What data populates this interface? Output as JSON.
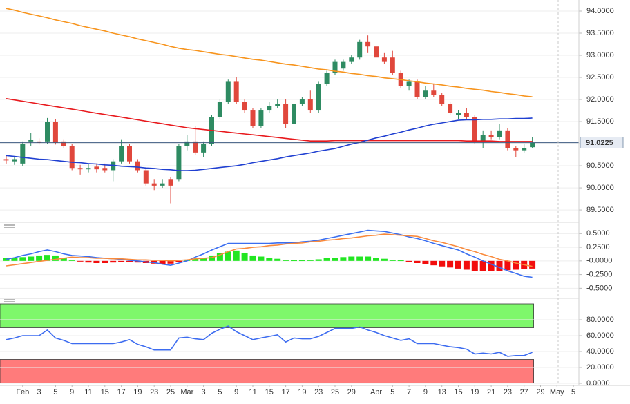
{
  "chart_data": [
    {
      "type": "candlestick",
      "categories": [
        null,
        null,
        "Feb",
        null,
        "3",
        null,
        "5",
        null,
        "9",
        null,
        "11",
        null,
        "15",
        null,
        "17",
        null,
        "19",
        null,
        "23",
        null,
        "25",
        null,
        "Mar",
        null,
        "3",
        null,
        "5",
        null,
        "9",
        null,
        "11",
        null,
        "15",
        null,
        "17",
        null,
        "19",
        null,
        "23",
        null,
        "25",
        null,
        "29",
        null,
        null,
        "Apr",
        null,
        "5",
        null,
        "7",
        null,
        "9",
        null,
        "13",
        null,
        "15",
        null,
        "19",
        null,
        "21",
        null,
        "23",
        null,
        "27",
        null,
        "29",
        null,
        "May",
        null,
        "5"
      ],
      "open": [
        90.65,
        90.6,
        90.55,
        91.05,
        91.05,
        91.05,
        91.5,
        91.05,
        90.95,
        90.45,
        90.42,
        90.48,
        90.45,
        90.4,
        90.6,
        90.95,
        90.6,
        90.4,
        90.1,
        90.05,
        90.2,
        90.2,
        90.95,
        91.05,
        90.8,
        91.0,
        91.6,
        91.95,
        92.4,
        91.95,
        91.75,
        91.4,
        91.75,
        91.85,
        91.9,
        91.45,
        91.9,
        92.0,
        91.75,
        92.35,
        92.6,
        92.7,
        92.85,
        92.95,
        93.3,
        93.2,
        92.95,
        92.95,
        92.6,
        92.3,
        92.4,
        92.05,
        92.2,
        92.1,
        91.9,
        91.65,
        91.7,
        91.6,
        91.05,
        91.2,
        91.15,
        91.3,
        90.9,
        90.85,
        90.92,
        null,
        null,
        null,
        null,
        null
      ],
      "high": [
        90.75,
        90.72,
        91.05,
        91.25,
        91.12,
        91.58,
        91.55,
        91.1,
        91.0,
        90.52,
        90.55,
        90.55,
        90.55,
        90.65,
        91.1,
        91.0,
        90.65,
        90.45,
        90.2,
        90.2,
        90.25,
        91.0,
        91.2,
        91.4,
        91.05,
        91.65,
        92.0,
        92.45,
        92.5,
        92.0,
        91.8,
        91.8,
        91.95,
        92.0,
        92.0,
        91.95,
        92.05,
        92.2,
        92.4,
        92.65,
        92.9,
        92.9,
        93.0,
        93.35,
        93.45,
        93.3,
        93.05,
        93.1,
        92.65,
        92.45,
        92.45,
        92.3,
        92.35,
        92.15,
        91.95,
        91.75,
        91.8,
        91.65,
        91.3,
        91.3,
        91.45,
        91.35,
        90.95,
        91.0,
        91.15,
        null,
        null,
        null,
        null,
        null
      ],
      "low": [
        90.55,
        90.52,
        90.5,
        90.95,
        90.98,
        91.0,
        90.98,
        90.9,
        90.4,
        90.3,
        90.35,
        90.35,
        90.35,
        90.15,
        90.55,
        90.55,
        90.35,
        90.05,
        89.95,
        90.0,
        89.65,
        90.15,
        90.85,
        90.75,
        90.7,
        90.95,
        91.55,
        91.9,
        91.9,
        91.7,
        91.35,
        91.35,
        91.7,
        91.8,
        91.35,
        91.4,
        91.85,
        91.7,
        91.7,
        92.3,
        92.55,
        92.65,
        92.8,
        92.9,
        93.05,
        92.9,
        92.8,
        92.55,
        92.25,
        92.2,
        92.0,
        92.0,
        92.05,
        91.85,
        91.65,
        91.55,
        91.55,
        91.0,
        90.9,
        91.1,
        91.1,
        90.85,
        90.7,
        90.8,
        90.9,
        null,
        null,
        null,
        null,
        null
      ],
      "close": [
        90.62,
        90.65,
        91.0,
        91.08,
        91.02,
        91.5,
        91.02,
        90.95,
        90.45,
        90.42,
        90.45,
        90.42,
        90.4,
        90.6,
        90.95,
        90.6,
        90.4,
        90.1,
        90.05,
        90.1,
        90.05,
        90.95,
        91.05,
        90.8,
        91.0,
        91.6,
        91.95,
        92.4,
        91.95,
        91.75,
        91.4,
        91.75,
        91.85,
        91.9,
        91.45,
        91.9,
        92.0,
        91.75,
        92.35,
        92.6,
        92.85,
        92.85,
        92.95,
        93.3,
        93.2,
        92.95,
        92.85,
        92.6,
        92.3,
        92.4,
        92.05,
        92.2,
        92.1,
        91.9,
        91.7,
        91.7,
        91.6,
        91.05,
        91.2,
        91.15,
        91.3,
        90.9,
        90.85,
        90.9,
        91.02,
        null,
        null,
        null,
        null,
        null
      ],
      "up_color": "#2e8b62",
      "down_color": "#e0473c",
      "series": [
        {
          "color": "#f7941d",
          "values": [
            94.06,
            94.02,
            93.97,
            93.93,
            93.89,
            93.85,
            93.8,
            93.76,
            93.72,
            93.67,
            93.63,
            93.59,
            93.55,
            93.5,
            93.46,
            93.42,
            93.37,
            93.33,
            93.29,
            93.25,
            93.2,
            93.16,
            93.13,
            93.11,
            93.08,
            93.05,
            93.02,
            93.0,
            92.97,
            92.94,
            92.91,
            92.89,
            92.86,
            92.83,
            92.8,
            92.78,
            92.75,
            92.72,
            92.69,
            92.67,
            92.64,
            92.62,
            92.59,
            92.57,
            92.54,
            92.52,
            92.49,
            92.47,
            92.45,
            92.42,
            92.4,
            92.37,
            92.35,
            92.33,
            92.3,
            92.28,
            92.25,
            92.23,
            92.21,
            92.18,
            92.16,
            92.13,
            92.11,
            92.08,
            92.06,
            null,
            null,
            null,
            null,
            null
          ]
        },
        {
          "color": "#e8191d",
          "values": [
            92.02,
            91.99,
            91.96,
            91.93,
            91.9,
            91.87,
            91.84,
            91.81,
            91.78,
            91.75,
            91.72,
            91.69,
            91.66,
            91.63,
            91.6,
            91.57,
            91.54,
            91.51,
            91.48,
            91.45,
            91.42,
            91.39,
            91.36,
            91.34,
            91.32,
            91.3,
            91.28,
            91.26,
            91.24,
            91.22,
            91.2,
            91.18,
            91.16,
            91.14,
            91.12,
            91.1,
            91.08,
            91.06,
            91.06,
            91.06,
            91.07,
            91.07,
            91.07,
            91.07,
            91.07,
            91.07,
            91.07,
            91.07,
            91.07,
            91.07,
            91.07,
            91.07,
            91.07,
            91.07,
            91.07,
            91.07,
            91.06,
            91.06,
            91.06,
            91.06,
            91.05,
            91.05,
            91.05,
            91.05,
            91.05,
            null,
            null,
            null,
            null,
            null
          ]
        },
        {
          "color": "#1f3fd1",
          "values": [
            90.73,
            90.71,
            90.69,
            90.67,
            90.65,
            90.64,
            90.62,
            90.6,
            90.58,
            90.57,
            90.55,
            90.54,
            90.52,
            90.51,
            90.49,
            90.48,
            90.47,
            90.45,
            90.44,
            90.42,
            90.41,
            90.39,
            90.39,
            90.4,
            90.42,
            90.44,
            90.46,
            90.48,
            90.5,
            90.53,
            90.57,
            90.6,
            90.63,
            90.66,
            90.7,
            90.73,
            90.76,
            90.79,
            90.83,
            90.86,
            90.89,
            90.94,
            90.99,
            91.03,
            91.08,
            91.13,
            91.17,
            91.22,
            91.26,
            91.31,
            91.35,
            91.4,
            91.44,
            91.47,
            91.5,
            91.53,
            91.54,
            91.54,
            91.55,
            91.55,
            91.56,
            91.56,
            91.57,
            91.57,
            91.58,
            null,
            null,
            null,
            null,
            null
          ]
        }
      ],
      "last_price": 91.0225,
      "last_price_color": "#3d5a80",
      "ylim": [
        89.22,
        94.25
      ],
      "yticks": [
        {
          "value": 89.5,
          "label": "89.5000"
        },
        {
          "value": 90,
          "label": "90.0000"
        },
        {
          "value": 90.5,
          "label": "90.5000"
        },
        {
          "value": 91,
          "label": "91.0000"
        },
        {
          "value": 91.5,
          "label": "91.5000"
        },
        {
          "value": 92,
          "label": "92.0000"
        },
        {
          "value": 92.5,
          "label": "92.5000"
        },
        {
          "value": 93,
          "label": "93.0000"
        },
        {
          "value": 93.5,
          "label": "93.5000"
        },
        {
          "value": 94,
          "label": "94.0000"
        }
      ],
      "grid": true
    },
    {
      "type": "bar",
      "values": [
        0.06,
        0.06,
        0.07,
        0.08,
        0.1,
        0.11,
        0.1,
        0.06,
        0.02,
        -0.01,
        -0.03,
        -0.04,
        -0.04,
        -0.03,
        -0.02,
        -0.02,
        -0.03,
        -0.04,
        -0.05,
        -0.06,
        -0.05,
        -0.02,
        0.02,
        0.04,
        0.06,
        0.1,
        0.14,
        0.17,
        0.19,
        0.15,
        0.1,
        0.08,
        0.06,
        0.04,
        0.02,
        0.01,
        0.01,
        0.02,
        0.03,
        0.05,
        0.06,
        0.07,
        0.08,
        0.08,
        0.08,
        0.06,
        0.04,
        0.02,
        0.01,
        -0.02,
        -0.04,
        -0.06,
        -0.08,
        -0.1,
        -0.12,
        -0.14,
        -0.16,
        -0.18,
        -0.19,
        -0.19,
        -0.18,
        -0.17,
        -0.16,
        -0.15,
        -0.14,
        null,
        null,
        null,
        null,
        null
      ],
      "positive_color": "#22e622",
      "negative_color": "#f20d0d",
      "series": [
        {
          "color": "#3a6ef0",
          "values": [
            0.03,
            0.06,
            0.1,
            0.13,
            0.17,
            0.2,
            0.17,
            0.13,
            0.1,
            0.09,
            0.08,
            0.06,
            0.05,
            0.04,
            0.03,
            0.01,
            0.0,
            -0.02,
            -0.03,
            -0.06,
            -0.08,
            -0.04,
            0.0,
            0.07,
            0.13,
            0.2,
            0.26,
            0.32,
            0.32,
            0.32,
            0.32,
            0.32,
            0.32,
            0.33,
            0.33,
            0.33,
            0.35,
            0.36,
            0.38,
            0.41,
            0.44,
            0.47,
            0.5,
            0.53,
            0.56,
            0.55,
            0.54,
            0.51,
            0.48,
            0.44,
            0.41,
            0.37,
            0.32,
            0.28,
            0.24,
            0.2,
            0.13,
            0.07,
            0.0,
            -0.06,
            -0.12,
            -0.18,
            -0.23,
            -0.28,
            -0.3,
            null,
            null,
            null,
            null,
            null
          ]
        },
        {
          "color": "#f98a3c",
          "values": [
            -0.09,
            -0.07,
            -0.05,
            -0.03,
            -0.01,
            0.01,
            0.03,
            0.05,
            0.07,
            0.06,
            0.06,
            0.05,
            0.05,
            0.04,
            0.04,
            0.03,
            0.02,
            0.02,
            0.01,
            0.01,
            0.0,
            0.01,
            0.02,
            0.04,
            0.05,
            0.06,
            0.11,
            0.17,
            0.22,
            0.23,
            0.25,
            0.26,
            0.28,
            0.29,
            0.31,
            0.32,
            0.33,
            0.35,
            0.36,
            0.38,
            0.39,
            0.41,
            0.42,
            0.44,
            0.46,
            0.47,
            0.49,
            0.48,
            0.47,
            0.46,
            0.45,
            0.41,
            0.37,
            0.34,
            0.3,
            0.26,
            0.21,
            0.17,
            0.12,
            0.08,
            0.03,
            0.0,
            -0.04,
            -0.07,
            -0.1,
            null,
            null,
            null,
            null,
            null
          ]
        }
      ],
      "ylim": [
        -0.66,
        0.58
      ],
      "yticks": [
        {
          "value": -0.5,
          "label": "-0.5000"
        },
        {
          "value": -0.25,
          "label": "-0.2500"
        },
        {
          "value": 0,
          "label": "-0.0000"
        },
        {
          "value": 0.25,
          "label": "0.2500"
        },
        {
          "value": 0.5,
          "label": "0.5000"
        }
      ],
      "grid": true
    },
    {
      "type": "line",
      "series": [
        {
          "color": "#3d6cf0",
          "values": [
            55,
            57,
            60,
            60,
            60,
            67,
            57,
            54,
            50,
            50,
            50,
            50,
            50,
            50,
            52,
            55,
            49,
            46,
            42,
            42,
            42,
            57,
            58,
            56,
            55,
            63,
            68,
            72,
            65,
            60,
            55,
            57,
            59,
            61,
            52,
            57,
            56,
            56,
            59,
            64,
            69,
            69,
            69,
            71,
            67,
            64,
            60,
            57,
            54,
            56,
            50,
            50,
            50,
            48,
            46,
            45,
            43,
            37,
            38,
            37,
            39,
            34,
            35,
            35,
            39,
            null,
            null,
            null,
            null,
            null
          ]
        }
      ],
      "bands": [
        {
          "from": 70,
          "to": 100,
          "color": "#7ef76b"
        },
        {
          "from": 0,
          "to": 30,
          "color": "#ff7b7b"
        }
      ],
      "ylim": [
        0,
        100
      ],
      "yticks": [
        {
          "value": 0,
          "label": "0.0000"
        },
        {
          "value": 20,
          "label": "20.0000"
        },
        {
          "value": 40,
          "label": "40.0000"
        },
        {
          "value": 60,
          "label": "60.0000"
        },
        {
          "value": 80,
          "label": "80.0000"
        }
      ],
      "grid": true
    }
  ]
}
